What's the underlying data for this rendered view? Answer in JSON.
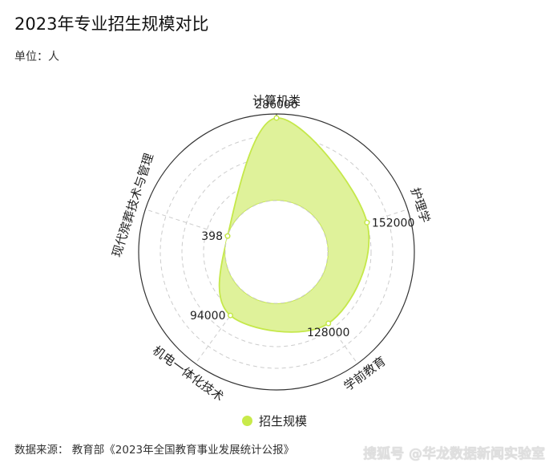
{
  "title": "2023年专业招生规模对比",
  "unit": "单位：人",
  "source": "数据来源： 教育部《2023年全国教育事业发展统计公报》",
  "watermark": "搜狐号 @华龙数据新闻实验室",
  "colors": {
    "fill": "#dff29a",
    "stroke": "#c5e84a",
    "ring": "#333333",
    "grid": "#cccccc"
  },
  "chart_data": {
    "type": "radar",
    "categories": [
      "计算机类",
      "护理学",
      "学前教育",
      "机电一体化技术",
      "现代殡葬技术与管理"
    ],
    "series": [
      {
        "name": "招生规模",
        "values": [
          286000,
          152000,
          128000,
          94000,
          398
        ]
      }
    ],
    "data_labels": [
      "286000",
      "152000",
      "128000",
      "94000",
      "398"
    ],
    "legend": "bottom"
  }
}
